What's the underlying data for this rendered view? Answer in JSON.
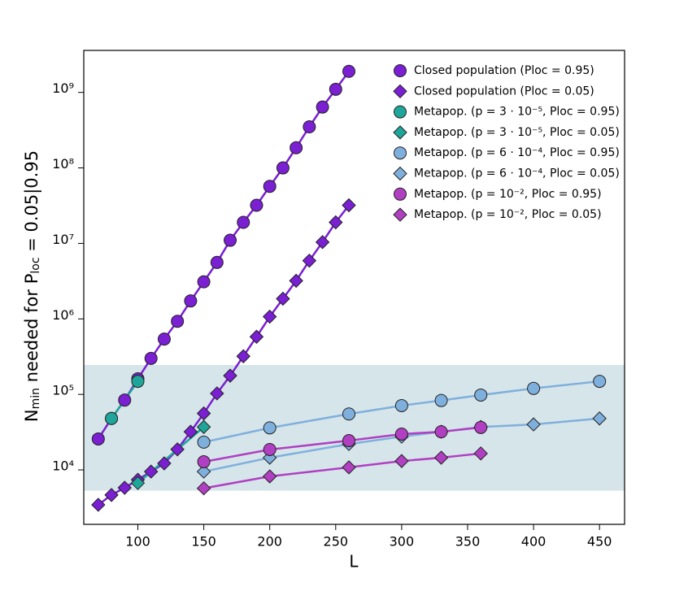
{
  "chart_data": {
    "type": "line",
    "x_label": "L",
    "y_label": [
      "N",
      "min",
      " needed for P",
      "loc",
      " = 0.05|0.95"
    ],
    "xlim": [
      59,
      469
    ],
    "xticks": [
      100,
      150,
      200,
      250,
      300,
      350,
      400,
      450
    ],
    "ylim": [
      1900,
      3600000000
    ],
    "log_y": true,
    "yticks": [
      {
        "value": 10000,
        "label": "10⁴"
      },
      {
        "value": 100000,
        "label": "10⁵"
      },
      {
        "value": 1000000,
        "label": "10⁶"
      },
      {
        "value": 10000000,
        "label": "10⁷"
      },
      {
        "value": 100000000,
        "label": "10⁸"
      },
      {
        "value": 1000000000,
        "label": "10⁹"
      }
    ],
    "shaded_range": [
      5300,
      245000
    ],
    "shaded_color": "#d6e5e9",
    "legend": "top-right",
    "series": [
      {
        "name": "Closed population (Ploc = 0.95)",
        "color": "#7a1fd2",
        "marker": "circle",
        "x": [
          70,
          80,
          90,
          100,
          110,
          120,
          130,
          140,
          150,
          160,
          170,
          180,
          190,
          200,
          210,
          220,
          230,
          240,
          250,
          260
        ],
        "values": [
          25700,
          48000,
          84000,
          161000,
          300000,
          540000,
          930000,
          1730000,
          3100000,
          5600000,
          11000000,
          19000000,
          32000000,
          57000000,
          100000000,
          185000000,
          350000000,
          640000000,
          1100000000,
          1900000000
        ]
      },
      {
        "name": "Closed population (Ploc = 0.05)",
        "color": "#7a1fd2",
        "marker": "diamond",
        "x": [
          70,
          80,
          90,
          100,
          110,
          120,
          130,
          140,
          150,
          160,
          170,
          180,
          190,
          200,
          210,
          220,
          230,
          240,
          250,
          260
        ],
        "values": [
          3450,
          4650,
          5800,
          7400,
          9500,
          12200,
          18700,
          32000,
          56000,
          103000,
          177000,
          320000,
          580000,
          1070000,
          1850000,
          3200000,
          5900000,
          10400000,
          19000000,
          32000000
        ]
      },
      {
        "name": "Metapop. (p = 3 · 10⁻⁵, Ploc = 0.95)",
        "color": "#1fa59a",
        "marker": "circle",
        "x": [
          80,
          100
        ],
        "values": [
          48000,
          149000
        ]
      },
      {
        "name": "Metapop. (p = 3 · 10⁻⁵, Ploc = 0.05)",
        "color": "#1fa59a",
        "marker": "diamond",
        "x": [
          100,
          150
        ],
        "values": [
          6700,
          37000
        ]
      },
      {
        "name": "Metapop. (p = 6 · 10⁻⁴, Ploc = 0.95)",
        "color": "#7fb0dd",
        "marker": "circle",
        "x": [
          150,
          200,
          260,
          300,
          330,
          360,
          400,
          450
        ],
        "values": [
          23300,
          36000,
          55000,
          71000,
          83000,
          98000,
          120000,
          149000
        ]
      },
      {
        "name": "Metapop. (p = 6 · 10⁻⁴, Ploc = 0.05)",
        "color": "#7fb0dd",
        "marker": "diamond",
        "x": [
          150,
          200,
          260,
          300,
          330,
          360,
          400,
          450
        ],
        "values": [
          9500,
          14500,
          22000,
          27600,
          32000,
          37000,
          40000,
          48000
        ]
      },
      {
        "name": "Metapop. (p = 10⁻², Ploc = 0.95)",
        "color": "#b13fc2",
        "marker": "circle",
        "x": [
          150,
          200,
          260,
          300,
          330,
          360
        ],
        "values": [
          12800,
          18600,
          24400,
          29800,
          32000,
          36500
        ]
      },
      {
        "name": "Metapop. (p = 10⁻², Ploc = 0.05)",
        "color": "#b13fc2",
        "marker": "diamond",
        "x": [
          150,
          200,
          260,
          300,
          330,
          360
        ],
        "values": [
          5700,
          8200,
          10800,
          13100,
          14500,
          16500
        ]
      }
    ]
  }
}
